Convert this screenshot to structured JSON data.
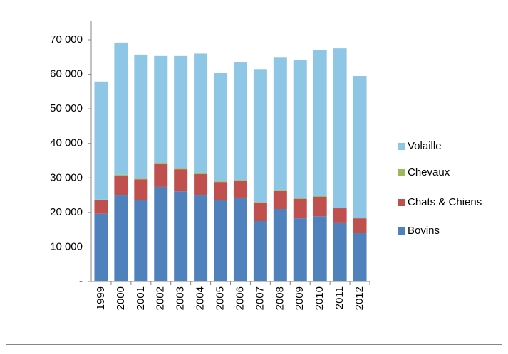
{
  "chart_data": {
    "type": "stacked-bar",
    "categories": [
      "1999",
      "2000",
      "2001",
      "2002",
      "2003",
      "2004",
      "2005",
      "2006",
      "2007",
      "2008",
      "2009",
      "2010",
      "2011",
      "2012"
    ],
    "series": [
      {
        "name": "Bovins",
        "color": "#4f81bd",
        "values": [
          19600,
          24900,
          23500,
          27400,
          26100,
          24900,
          23500,
          24300,
          17500,
          21000,
          18300,
          18900,
          16900,
          14000
        ]
      },
      {
        "name": "Chats & Chiens",
        "color": "#c0504d",
        "values": [
          3900,
          5800,
          6100,
          6600,
          6400,
          6200,
          5300,
          4900,
          5300,
          5300,
          5600,
          5600,
          4300,
          4300
        ]
      },
      {
        "name": "Chevaux",
        "color": "#9bbb59",
        "values": [
          200,
          200,
          200,
          200,
          200,
          200,
          200,
          200,
          200,
          200,
          200,
          200,
          200,
          200
        ]
      },
      {
        "name": "Volaille",
        "color": "#8ec6e6",
        "values": [
          34200,
          38300,
          35900,
          31100,
          32600,
          34700,
          31500,
          34200,
          38500,
          38500,
          40100,
          42400,
          46100,
          41000
        ]
      }
    ],
    "ylim": [
      0,
      70000
    ],
    "yticks": [
      {
        "value": 0,
        "label": "-"
      },
      {
        "value": 10000,
        "label": "10 000"
      },
      {
        "value": 20000,
        "label": "20 000"
      },
      {
        "value": 30000,
        "label": "30 000"
      },
      {
        "value": 40000,
        "label": "40 000"
      },
      {
        "value": 50000,
        "label": "50 000"
      },
      {
        "value": 60000,
        "label": "60 000"
      },
      {
        "value": 70000,
        "label": "70 000"
      }
    ],
    "legend": "right"
  }
}
